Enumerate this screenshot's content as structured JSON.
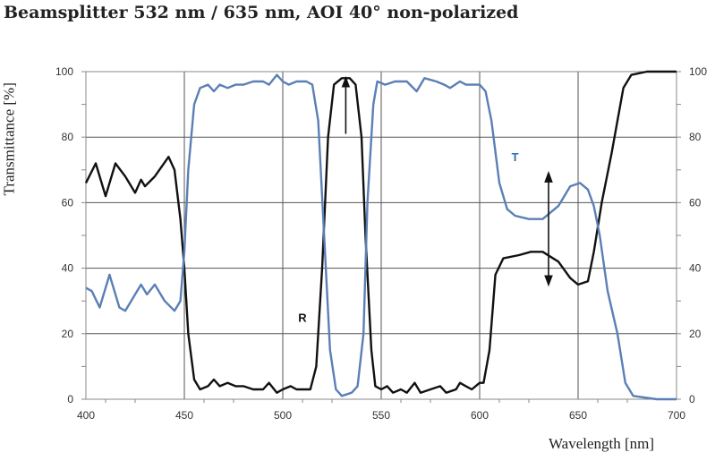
{
  "chart_data": {
    "type": "line",
    "title": "Beamsplitter 532 nm / 635 nm, AOI 40° non-polarized",
    "xlabel": "Wavelength [nm]",
    "ylabel": "Transmittance [%]",
    "xlim": [
      400,
      700
    ],
    "ylim": [
      0,
      100
    ],
    "x_ticks": [
      "400",
      "450",
      "500",
      "550",
      "600",
      "650",
      "700"
    ],
    "y_ticks": [
      "0",
      "20",
      "40",
      "60",
      "80",
      "100"
    ],
    "y_ticks_right": [
      "0",
      "20",
      "40",
      "60",
      "80",
      "100"
    ],
    "grid": true,
    "series": [
      {
        "name": "R",
        "color": "#111111",
        "x": [
          400,
          405,
          410,
          415,
          420,
          425,
          428,
          430,
          435,
          442,
          445,
          448,
          450,
          452,
          455,
          458,
          462,
          465,
          468,
          472,
          476,
          480,
          485,
          490,
          493,
          497,
          500,
          504,
          507,
          510,
          514,
          517,
          520,
          523,
          526,
          530,
          534,
          537,
          540,
          542,
          545,
          547,
          550,
          553,
          556,
          560,
          563,
          567,
          570,
          575,
          580,
          583,
          588,
          590,
          593,
          596,
          600,
          602,
          605,
          608,
          612,
          620,
          626,
          632,
          640,
          646,
          650,
          655,
          658,
          662,
          667,
          670,
          673,
          677,
          685,
          700
        ],
        "y": [
          66,
          72,
          62,
          72,
          68,
          63,
          67,
          65,
          68,
          74,
          70,
          55,
          40,
          20,
          6,
          3,
          4,
          6,
          4,
          5,
          4,
          4,
          3,
          3,
          5,
          2,
          3,
          4,
          3,
          3,
          3,
          10,
          40,
          80,
          96,
          98,
          98,
          96,
          80,
          50,
          15,
          4,
          3,
          4,
          2,
          3,
          2,
          5,
          2,
          3,
          4,
          2,
          3,
          5,
          4,
          3,
          5,
          5,
          15,
          38,
          43,
          44,
          45,
          45,
          42,
          37,
          35,
          36,
          45,
          60,
          75,
          85,
          95,
          99,
          100,
          100
        ]
      },
      {
        "name": "T",
        "color": "#5b7fb5",
        "x": [
          400,
          403,
          407,
          412,
          417,
          420,
          425,
          428,
          431,
          435,
          440,
          445,
          448,
          450,
          452,
          455,
          458,
          462,
          465,
          468,
          472,
          476,
          480,
          485,
          490,
          493,
          497,
          500,
          503,
          507,
          512,
          515,
          518,
          521,
          524,
          527,
          530,
          535,
          538,
          541,
          543,
          546,
          548,
          552,
          557,
          563,
          568,
          572,
          578,
          582,
          585,
          590,
          593,
          597,
          600,
          603,
          606,
          610,
          614,
          618,
          625,
          632,
          640,
          646,
          651,
          655,
          658,
          661,
          665,
          670,
          674,
          678,
          690,
          700
        ],
        "y": [
          34,
          33,
          28,
          38,
          28,
          27,
          32,
          35,
          32,
          35,
          30,
          27,
          30,
          45,
          70,
          90,
          95,
          96,
          94,
          96,
          95,
          96,
          96,
          97,
          97,
          96,
          99,
          97,
          96,
          97,
          97,
          96,
          85,
          50,
          15,
          3,
          1,
          2,
          4,
          20,
          60,
          90,
          97,
          96,
          97,
          97,
          94,
          98,
          97,
          96,
          95,
          97,
          96,
          96,
          96,
          94,
          85,
          66,
          58,
          56,
          55,
          55,
          59,
          65,
          66,
          64,
          59,
          50,
          33,
          20,
          5,
          1,
          0,
          0
        ]
      }
    ],
    "annotations": [
      {
        "text": "R",
        "x": 510,
        "y": 25
      },
      {
        "text": "T",
        "x": 618,
        "y": 74
      },
      {
        "type": "arrow-up",
        "x": 532,
        "from": 81,
        "to": 98
      },
      {
        "type": "double-arrow",
        "x": 635,
        "from": 35,
        "to": 69
      }
    ]
  }
}
